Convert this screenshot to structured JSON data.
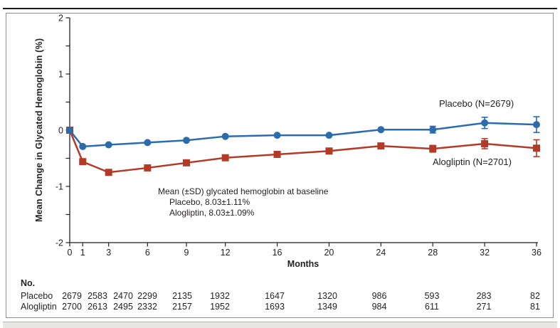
{
  "figure": {
    "series_labels": {
      "placebo": "Placebo (N=2679)",
      "alogliptin": "Alogliptin (N=2701)"
    },
    "annotation": {
      "line1": "Mean (±SD) glycated hemoglobin at baseline",
      "line2": "Placebo, 8.03±1.11%",
      "line3": "Alogliptin, 8.03±1.09%"
    }
  },
  "chart_data": {
    "type": "line",
    "title": "",
    "xlabel": "Months",
    "ylabel": "Mean Change in Glycated Hemoglobin (%)",
    "x": [
      0,
      1,
      3,
      6,
      9,
      12,
      16,
      20,
      24,
      28,
      32,
      36
    ],
    "ylim": [
      -2,
      2
    ],
    "yticks": [
      2,
      1,
      0,
      -1,
      -2
    ],
    "y_minor_tick_step": 0.5,
    "grid": "off",
    "legend_position": "inline-labels",
    "series": [
      {
        "name": "Placebo (N=2679)",
        "marker": "circle",
        "color": "#2b6cad",
        "values": [
          0,
          -0.29,
          -0.26,
          -0.22,
          -0.18,
          -0.11,
          -0.09,
          -0.09,
          0.01,
          0.01,
          0.13,
          0.1
        ],
        "error_bars": {
          "28": 0.06,
          "32": 0.1,
          "36": 0.14
        }
      },
      {
        "name": "Alogliptin (N=2701)",
        "marker": "square",
        "color": "#b43a28",
        "values": [
          0,
          -0.56,
          -0.75,
          -0.67,
          -0.58,
          -0.49,
          -0.43,
          -0.37,
          -0.28,
          -0.33,
          -0.24,
          -0.32
        ],
        "error_bars": {
          "28": 0.06,
          "32": 0.09,
          "36": 0.15
        }
      }
    ]
  },
  "at_risk_table": {
    "title": "No.",
    "rows": [
      {
        "label": "Placebo",
        "counts": [
          "2679",
          "2583",
          "2470",
          "2299",
          "2135",
          "1932",
          "1647",
          "1320",
          "986",
          "593",
          "283",
          "82"
        ]
      },
      {
        "label": "Alogliptin",
        "counts": [
          "2700",
          "2613",
          "2495",
          "2332",
          "2157",
          "1952",
          "1693",
          "1349",
          "984",
          "611",
          "271",
          "81"
        ]
      }
    ]
  },
  "colors": {
    "placebo": "#2b6cad",
    "alogliptin": "#b43a28",
    "axis_text": "#231f20",
    "panel_border": "#8f8f8f",
    "top_rule": "#1c1c1c",
    "bottom_strip": "#e9e7e3"
  }
}
